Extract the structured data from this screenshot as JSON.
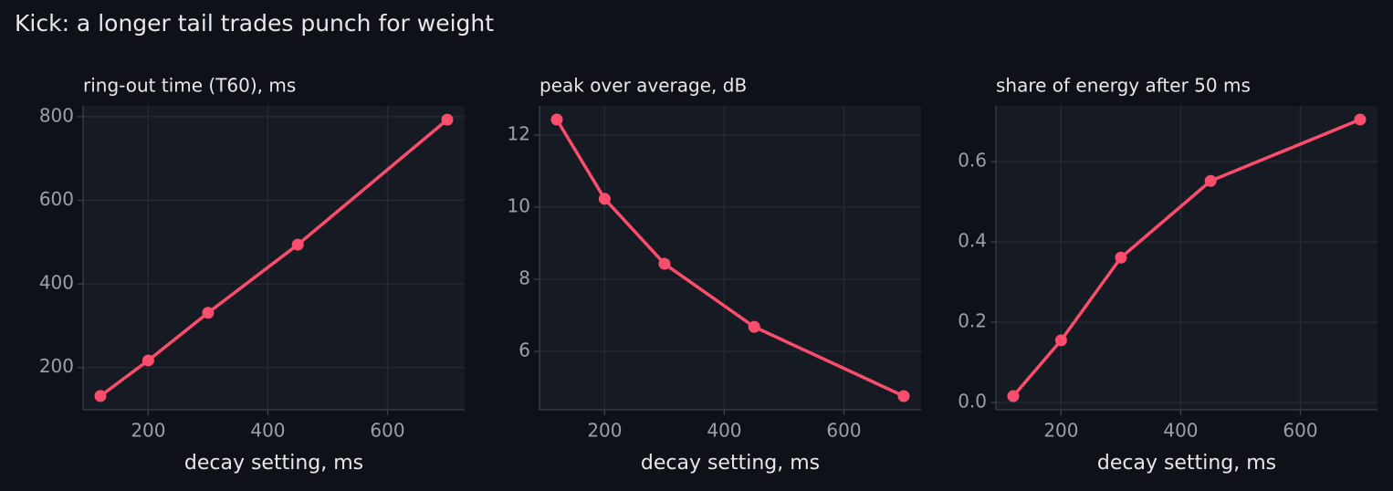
{
  "title": "Kick: a longer tail trades punch for weight",
  "chart_data": [
    {
      "type": "line",
      "title": "ring-out time (T60), ms",
      "x_label": "decay setting, ms",
      "x": [
        120,
        200,
        300,
        450,
        700
      ],
      "values": [
        132,
        217,
        331,
        494,
        793
      ],
      "color": "#ff4d6d",
      "xlim": [
        91,
        729
      ],
      "xticks": [
        200,
        400,
        600
      ],
      "ylim": [
        99,
        826
      ],
      "yticks": [
        200,
        400,
        600,
        800
      ],
      "grid": true
    },
    {
      "type": "line",
      "title": "peak over average, dB",
      "x_label": "decay setting, ms",
      "x": [
        120,
        200,
        300,
        450,
        700
      ],
      "values": [
        12.43,
        10.23,
        8.43,
        6.68,
        4.76
      ],
      "color": "#ff4d6d",
      "xlim": [
        91,
        729
      ],
      "xticks": [
        200,
        400,
        600
      ],
      "ylim": [
        4.38,
        12.81
      ],
      "yticks": [
        6,
        8,
        10,
        12
      ],
      "grid": true
    },
    {
      "type": "line",
      "title": "share of energy after 50 ms",
      "x_label": "decay setting, ms",
      "x": [
        120,
        200,
        300,
        450,
        700
      ],
      "values": [
        0.016,
        0.155,
        0.361,
        0.552,
        0.705
      ],
      "color": "#ff4d6d",
      "xlim": [
        91,
        729
      ],
      "xticks": [
        200,
        400,
        600
      ],
      "ylim": [
        -0.018,
        0.739
      ],
      "yticks": [
        {
          "value": 0,
          "label": "0.0"
        },
        0.2,
        0.4,
        0.6
      ],
      "grid": true
    }
  ]
}
